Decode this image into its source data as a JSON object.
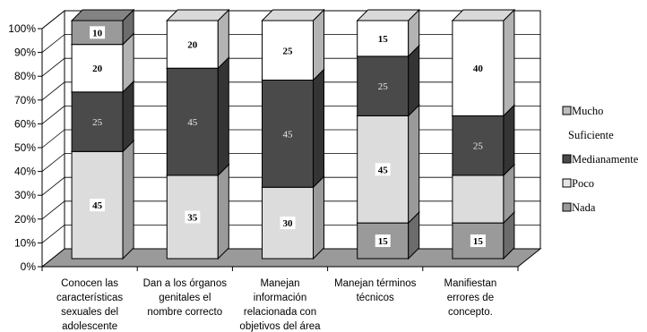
{
  "chart_data": {
    "type": "bar",
    "stacked": true,
    "three_d": true,
    "percent_scale": true,
    "categories": [
      [
        "Conocen las",
        "características",
        "sexuales del",
        "adolescente"
      ],
      [
        "Dan a los órganos",
        "genitales el",
        "nombre correcto"
      ],
      [
        "Manejan",
        "información",
        "relacionada con",
        "objetivos del área"
      ],
      [
        "Manejan términos",
        "técnicos"
      ],
      [
        "Manifiestan",
        "errores de",
        "concepto."
      ]
    ],
    "series": [
      {
        "name": "Nada",
        "values": [
          0,
          0,
          0,
          15,
          15
        ],
        "color": "#9a9a9a",
        "label_style": "boxed"
      },
      {
        "name": "Poco",
        "values": [
          45,
          35,
          30,
          45,
          20
        ],
        "color": "#dcdcdc",
        "label_style": "boxed"
      },
      {
        "name": "Medianamente",
        "legend_label": "Medianamente",
        "values": [
          25,
          45,
          45,
          25,
          25
        ],
        "color": "#4a4a4a",
        "label_style": "light"
      },
      {
        "name": "Suficiente",
        "values": [
          20,
          20,
          25,
          15,
          40
        ],
        "color": "#ffffff",
        "label_style": "boxed"
      },
      {
        "name": "Mucho",
        "values": [
          10,
          0,
          0,
          0,
          0
        ],
        "color": "#9a9a9a",
        "label_style": "boxed"
      }
    ],
    "data_labels": [
      [
        "",
        "45",
        "25",
        "20",
        "10"
      ],
      [
        "",
        "35",
        "45",
        "20",
        ""
      ],
      [
        "",
        "30",
        "45",
        "25",
        ""
      ],
      [
        "15",
        "45",
        "25",
        "15",
        ""
      ],
      [
        "15",
        "",
        "25",
        "40",
        ""
      ]
    ],
    "y_ticks": [
      "0%",
      "10%",
      "20%",
      "30%",
      "40%",
      "50%",
      "60%",
      "70%",
      "80%",
      "90%",
      "100%"
    ],
    "ylim": [
      0,
      100
    ],
    "legend": {
      "position": "right",
      "entries": [
        {
          "label": "Mucho",
          "swatch": true,
          "color": "#bdbdbd"
        },
        {
          "label": "Suficiente",
          "swatch": false
        },
        {
          "label": "Medianamente",
          "swatch": true,
          "color": "#4a4a4a"
        },
        {
          "label": "Poco",
          "swatch": true,
          "color": "#e6e6e6"
        },
        {
          "label": "Nada",
          "swatch": true,
          "color": "#9a9a9a"
        }
      ]
    },
    "grid": true
  }
}
